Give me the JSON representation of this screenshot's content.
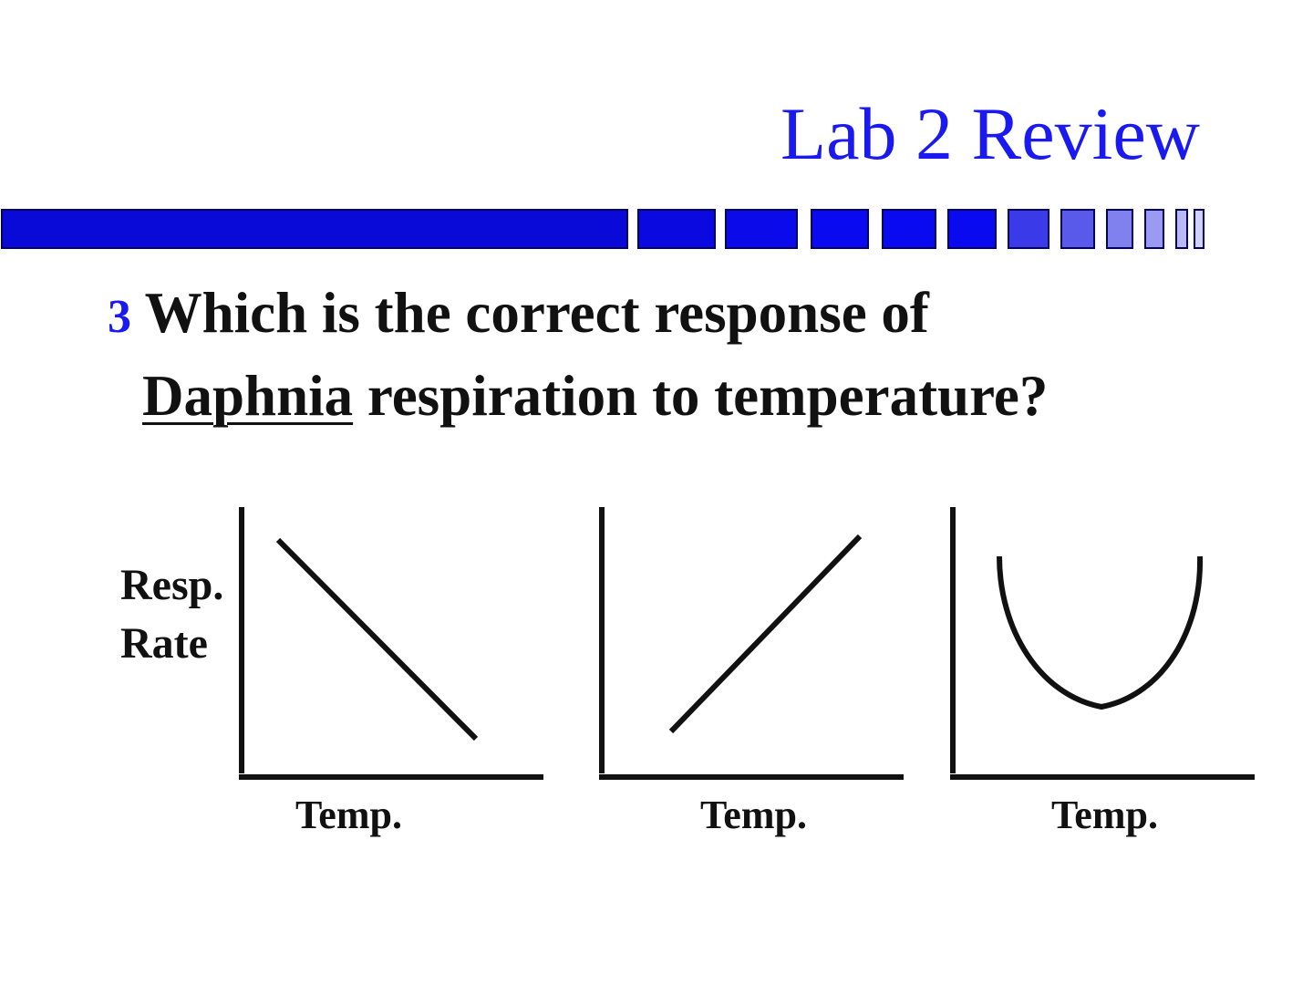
{
  "title": "Lab 2 Review",
  "colors": {
    "accent": "#1a1af0",
    "text": "#111111"
  },
  "question": {
    "number": "3",
    "line1": "Which is the correct response of",
    "organism": "Daphnia",
    "line2_rest": " respiration to temperature?"
  },
  "y_label": {
    "line1": "Resp.",
    "line2": "Rate"
  },
  "graphs": [
    {
      "trend": "decreasing",
      "x_label": "Temp."
    },
    {
      "trend": "increasing",
      "x_label": "Temp."
    },
    {
      "trend": "u-shaped",
      "x_label": "Temp."
    }
  ]
}
